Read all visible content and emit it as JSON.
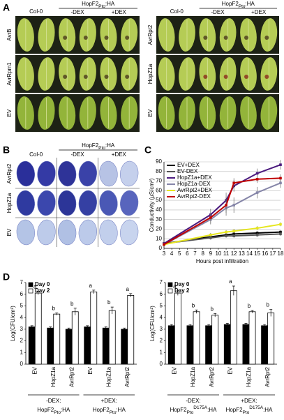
{
  "panel_a": {
    "label": "A",
    "left": {
      "control": "Col-0",
      "construct": {
        "base": "HopF2",
        "sub": "Pto",
        "end": ":HA"
      },
      "treatments": [
        "-DEX",
        "+DEX"
      ],
      "rows": [
        "AvrB",
        "AvrRpm1",
        "EV"
      ]
    },
    "right": {
      "control": "Col-0",
      "construct": {
        "base": "HopF2",
        "sub": "Pto",
        "end": ":HA"
      },
      "treatments": [
        "-DEX",
        "+DEX"
      ],
      "rows": [
        "AvrRpt2",
        "HopZ1a",
        "EV"
      ]
    }
  },
  "panel_b": {
    "label": "B",
    "control": "Col-0",
    "construct": {
      "base": "HopF2",
      "sub": "Pto",
      "end": ":HA"
    },
    "treatments": [
      "-DEX",
      "+DEX"
    ],
    "rows": [
      "AvrRpt2",
      "HopZ1a",
      "EV"
    ]
  },
  "chart_data": [
    {
      "type": "line",
      "panel_label": "C",
      "xlabel": "Hours post infiltration",
      "ylabel": "Conductivity (µS/cm²)",
      "x": [
        3,
        9,
        11,
        12,
        15,
        18
      ],
      "xlim": [
        3,
        18
      ],
      "xticks": [
        3,
        4,
        5,
        6,
        7,
        8,
        9,
        10,
        11,
        12,
        13,
        14,
        15,
        16,
        17,
        18
      ],
      "ylim": [
        0,
        90
      ],
      "yticks": [
        0,
        10,
        20,
        30,
        40,
        50,
        60,
        70,
        80,
        90
      ],
      "grid": true,
      "series": [
        {
          "name": "EV+DEX",
          "color": "#000000",
          "values": [
            5,
            12,
            14,
            15,
            16,
            17
          ],
          "errors": [
            0.5,
            2,
            2,
            2,
            2,
            2
          ]
        },
        {
          "name": "EV-DEX",
          "color": "#555555",
          "values": [
            5,
            11,
            13,
            13,
            14,
            15
          ],
          "errors": [
            0.5,
            2,
            2,
            2,
            2,
            2
          ]
        },
        {
          "name": "HopZ1a+DEX",
          "color": "#4b1a7e",
          "values": [
            5,
            35,
            50,
            65,
            78,
            87
          ],
          "errors": [
            1,
            6,
            8,
            6,
            5,
            5
          ]
        },
        {
          "name": "HopZ1a-DEX",
          "color": "#8585a8",
          "values": [
            4,
            30,
            42,
            45,
            58,
            68
          ],
          "errors": [
            1,
            5,
            8,
            8,
            6,
            5
          ]
        },
        {
          "name": "AvrRpt2+DEX",
          "color": "#e6e61e",
          "values": [
            4,
            14,
            17,
            18,
            21,
            25
          ],
          "errors": [
            0.5,
            2,
            2,
            2,
            2,
            2
          ]
        },
        {
          "name": "AvrRpt2-DEX",
          "color": "#c00000",
          "values": [
            4,
            32,
            45,
            68,
            72,
            73
          ],
          "errors": [
            1,
            6,
            8,
            5,
            4,
            4
          ]
        }
      ]
    },
    {
      "type": "bar",
      "panel_label": "D",
      "ylabel": "Log(CFU/cm²)",
      "categories": [
        "EV",
        "HopZ1a",
        "AvrRpt2",
        "EV",
        "HopZ1a",
        "AvrRpt2"
      ],
      "ylim": [
        0,
        7
      ],
      "yticks": [
        0,
        1,
        2,
        3,
        4,
        5,
        6,
        7
      ],
      "series": [
        {
          "name": "Day 0",
          "color": "#000000",
          "values": [
            3.2,
            3.1,
            3.0,
            3.2,
            3.1,
            3.0
          ],
          "errors": [
            0.1,
            0.1,
            0.1,
            0.1,
            0.1,
            0.1
          ]
        },
        {
          "name": "Day 2",
          "color": "#ffffff",
          "values": [
            6.1,
            4.3,
            4.5,
            6.2,
            4.6,
            5.9
          ],
          "errors": [
            0.15,
            0.1,
            0.3,
            0.15,
            0.3,
            0.15
          ]
        }
      ],
      "significance": [
        "a",
        "b",
        "b",
        "a",
        "b",
        "a"
      ],
      "groups": [
        {
          "condition": "-DEX:",
          "construct": {
            "base": "HopF2",
            "sub": "Pto",
            "end": ":HA"
          }
        },
        {
          "condition": "+DEX:",
          "construct": {
            "base": "HopF2",
            "sub": "Pto",
            "end": ":HA"
          }
        }
      ]
    },
    {
      "type": "bar",
      "ylabel": "Log(CFU/cm²)",
      "categories": [
        "EV",
        "HopZ1a",
        "AvrRpt2",
        "EV",
        "HopZ1a",
        "AvrRpt2"
      ],
      "ylim": [
        0,
        7
      ],
      "yticks": [
        0,
        1,
        2,
        3,
        4,
        5,
        6,
        7
      ],
      "series": [
        {
          "name": "Day 0",
          "color": "#000000",
          "values": [
            3.3,
            3.3,
            3.3,
            3.4,
            3.4,
            3.3
          ],
          "errors": [
            0.1,
            0.1,
            0.1,
            0.1,
            0.1,
            0.1
          ]
        },
        {
          "name": "Day 2",
          "color": "#ffffff",
          "values": [
            6.1,
            4.5,
            4.2,
            6.3,
            4.5,
            4.4
          ],
          "errors": [
            0.2,
            0.15,
            0.15,
            0.4,
            0.1,
            0.3
          ]
        }
      ],
      "significance": [
        "a",
        "b",
        "b",
        "a",
        "b",
        "b"
      ],
      "groups": [
        {
          "condition": "-DEX:",
          "construct": {
            "base": "HopF2",
            "sub": "Pto",
            "sup": "D175A",
            "end": ":HA"
          }
        },
        {
          "condition": "+DEX:",
          "construct": {
            "base": "HopF2",
            "sub": "Pto",
            "sup": "D175A",
            "end": ":HA"
          }
        }
      ]
    }
  ]
}
